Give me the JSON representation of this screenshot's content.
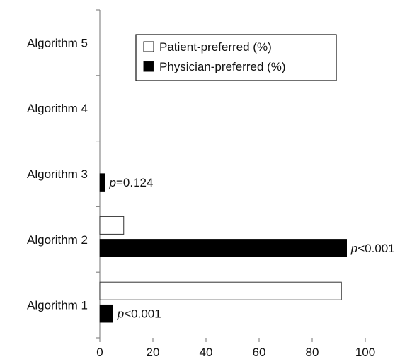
{
  "chart_data": {
    "type": "bar",
    "orientation": "horizontal",
    "categories": [
      "Algorithm 1",
      "Algorithm 2",
      "Algorithm 3",
      "Algorithm 4",
      "Algorithm 5"
    ],
    "series": [
      {
        "name": "Patient-preferred (%)",
        "values": [
          91,
          9,
          0,
          0,
          0
        ],
        "color": "#ffffff"
      },
      {
        "name": "Physician-preferred (%)",
        "values": [
          5,
          93,
          2,
          0,
          0
        ],
        "color": "#000000"
      }
    ],
    "annotations": [
      {
        "category": "Algorithm 1",
        "series": "Physician-preferred (%)",
        "p_symbol": "p",
        "text": "<0.001"
      },
      {
        "category": "Algorithm 2",
        "series": "Physician-preferred (%)",
        "p_symbol": "p",
        "text": "<0.001"
      },
      {
        "category": "Algorithm 3",
        "series": "Physician-preferred (%)",
        "p_symbol": "p",
        "text": "=0.124"
      }
    ],
    "xlim": [
      0,
      100
    ],
    "xticks": [
      0,
      20,
      40,
      60,
      80,
      100
    ],
    "grid": false,
    "legend": "top-right",
    "title": "",
    "xlabel": "",
    "ylabel": ""
  }
}
